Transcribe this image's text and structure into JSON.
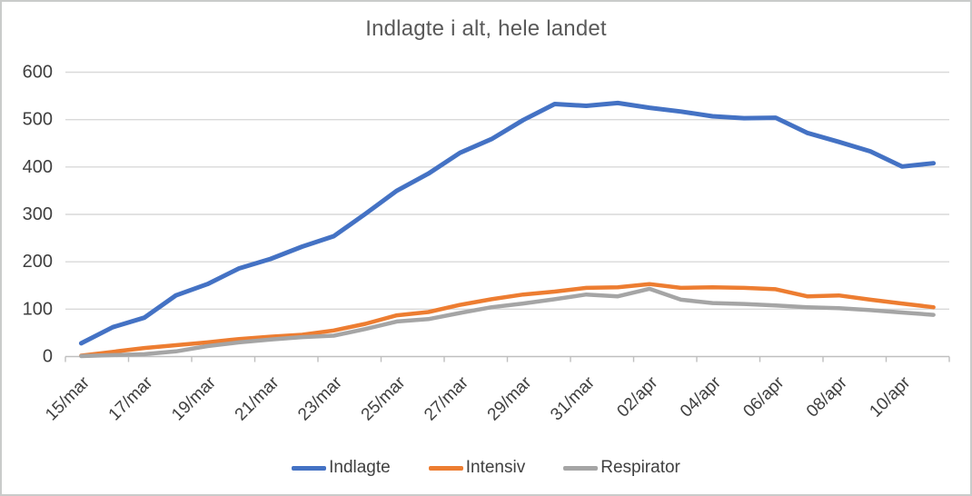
{
  "frame": {
    "background": "#ffffff",
    "border_color": "#c9cbca"
  },
  "chart_data": {
    "type": "line",
    "title": "Indlagte i alt, hele landet",
    "categories": [
      "15/mar",
      "16/mar",
      "17/mar",
      "18/mar",
      "19/mar",
      "20/mar",
      "21/mar",
      "22/mar",
      "23/mar",
      "24/mar",
      "25/mar",
      "26/mar",
      "27/mar",
      "28/mar",
      "29/mar",
      "30/mar",
      "31/mar",
      "01/apr",
      "02/apr",
      "03/apr",
      "04/apr",
      "05/apr",
      "06/apr",
      "07/apr",
      "08/apr",
      "09/apr",
      "10/apr",
      "11/apr"
    ],
    "x_tick_labels": [
      "15/mar",
      "17/mar",
      "19/mar",
      "21/mar",
      "23/mar",
      "25/mar",
      "27/mar",
      "29/mar",
      "31/mar",
      "02/apr",
      "04/apr",
      "06/apr",
      "08/apr",
      "10/apr"
    ],
    "series": [
      {
        "name": "Indlagte",
        "color": "#4472C4",
        "values": [
          28,
          62,
          82,
          129,
          153,
          186,
          206,
          232,
          254,
          301,
          350,
          386,
          430,
          459,
          499,
          533,
          529,
          535,
          525,
          517,
          507,
          503,
          504,
          472,
          453,
          433,
          401,
          408
        ]
      },
      {
        "name": "Intensiv",
        "color": "#ED7D31",
        "values": [
          2,
          10,
          18,
          24,
          30,
          37,
          42,
          46,
          55,
          69,
          87,
          94,
          109,
          121,
          131,
          137,
          145,
          146,
          153,
          145,
          146,
          145,
          142,
          127,
          129,
          120,
          112,
          104
        ]
      },
      {
        "name": "Respirator",
        "color": "#A5A5A5",
        "values": [
          1,
          3,
          5,
          11,
          22,
          30,
          36,
          41,
          44,
          58,
          74,
          79,
          92,
          104,
          112,
          121,
          131,
          127,
          143,
          120,
          113,
          111,
          108,
          104,
          102,
          98,
          93,
          88
        ]
      }
    ],
    "ylim": [
      0,
      600
    ],
    "yticks": [
      0,
      100,
      200,
      300,
      400,
      500,
      600
    ],
    "grid": true,
    "legend_position": "bottom",
    "gridline_color": "#D9D9D9",
    "axis_color": "#BFBFBF",
    "axis_text_color": "#404040",
    "title_color": "#595959"
  }
}
